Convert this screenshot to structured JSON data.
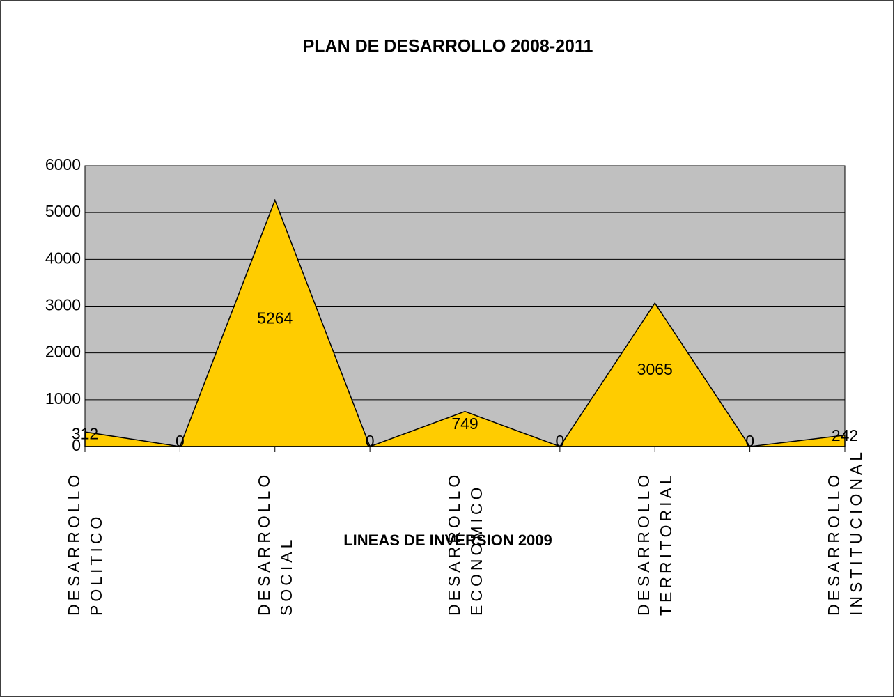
{
  "chart_data": {
    "type": "area",
    "title": "PLAN DE DESARROLLO 2008-2011",
    "x_label": "LINEAS DE INVERSION 2009",
    "categories": [
      "DESARROLLO POLITICO",
      null,
      "DESARROLLO SOCIAL",
      null,
      "DESARROLLO ECONOMICO",
      null,
      "DESARROLLO TERRITORIAL",
      null,
      "DESARROLLO INSTITUCIONAL"
    ],
    "values": [
      312,
      0,
      5264,
      0,
      749,
      0,
      3065,
      0,
      242
    ],
    "color": "#ffcc00",
    "plot_background": "#c0c0c0",
    "ylim": [
      0,
      6000
    ],
    "yticks": [
      0,
      1000,
      2000,
      3000,
      4000,
      5000,
      6000
    ],
    "grid": true
  }
}
